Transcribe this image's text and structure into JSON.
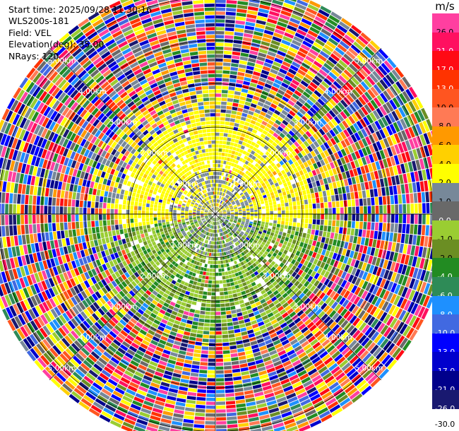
{
  "header": {
    "start_time": "Start time: 2025/09/28 11:30:16",
    "instrument": "WLS200s-181",
    "field": "Field: VEL",
    "elevation": "Elevation(deg): 35.00",
    "nrays": "NRays: 120"
  },
  "colorbar": {
    "unit": "m/s",
    "levels": [
      {
        "label": "26.0",
        "color": "#ff3fa0"
      },
      {
        "label": "21.0",
        "color": "#ff1060"
      },
      {
        "label": "17.0",
        "color": "#ff0a14"
      },
      {
        "label": "13.0",
        "color": "#ff3300"
      },
      {
        "label": "10.0",
        "color": "#ff5520"
      },
      {
        "label": "8.0",
        "color": "#ff7a55"
      },
      {
        "label": "6.0",
        "color": "#ff9900"
      },
      {
        "label": "4.0",
        "color": "#ffd000"
      },
      {
        "label": "2.0",
        "color": "#ffff00"
      },
      {
        "label": "1.0",
        "color": "#778899"
      },
      {
        "label": "0.0",
        "color": "#696969"
      },
      {
        "label": "-1.0",
        "color": "#9acd32"
      },
      {
        "label": "-2.0",
        "color": "#6b8e23"
      },
      {
        "label": "-4.0",
        "color": "#228b22"
      },
      {
        "label": "-6.0",
        "color": "#2e8b57"
      },
      {
        "label": "-8.0",
        "color": "#1e90ff"
      },
      {
        "label": "-10.0",
        "color": "#4169e1"
      },
      {
        "label": "-13.0",
        "color": "#0000ff"
      },
      {
        "label": "-17.0",
        "color": "#0000cd"
      },
      {
        "label": "-21.0",
        "color": "#00008b"
      },
      {
        "label": "-26.0",
        "color": "#191970"
      },
      {
        "label": "-30.0",
        "color": ""
      }
    ]
  },
  "chart_data": {
    "type": "heatmap",
    "subtype": "ppi-polar",
    "field": "VEL",
    "unit": "m/s",
    "elevation_deg": 35.0,
    "n_rays": 120,
    "range_rings_km": [
      1.0,
      2.0,
      3.0,
      4.0,
      5.0
    ],
    "range_ring_labels": [
      "1.00km",
      "2.00km",
      "3.00km",
      "4.00km",
      "5.00km"
    ],
    "max_range_km": 5.4,
    "color_levels": [
      26.0,
      21.0,
      17.0,
      13.0,
      10.0,
      8.0,
      6.0,
      4.0,
      2.0,
      1.0,
      0.0,
      -1.0,
      -2.0,
      -4.0,
      -6.0,
      -8.0,
      -10.0,
      -13.0,
      -17.0,
      -21.0,
      -26.0,
      -30.0
    ],
    "pattern": "near-range (< ~2 km): positive velocities 1-4 m/s (yellow) on the northern half and small negative velocities -1 to -2 m/s (olive/green) on the southern half; beyond ~2.5 km: noisy values spanning the full -30 to 26 m/s range",
    "spokes": 8,
    "grid": true
  }
}
